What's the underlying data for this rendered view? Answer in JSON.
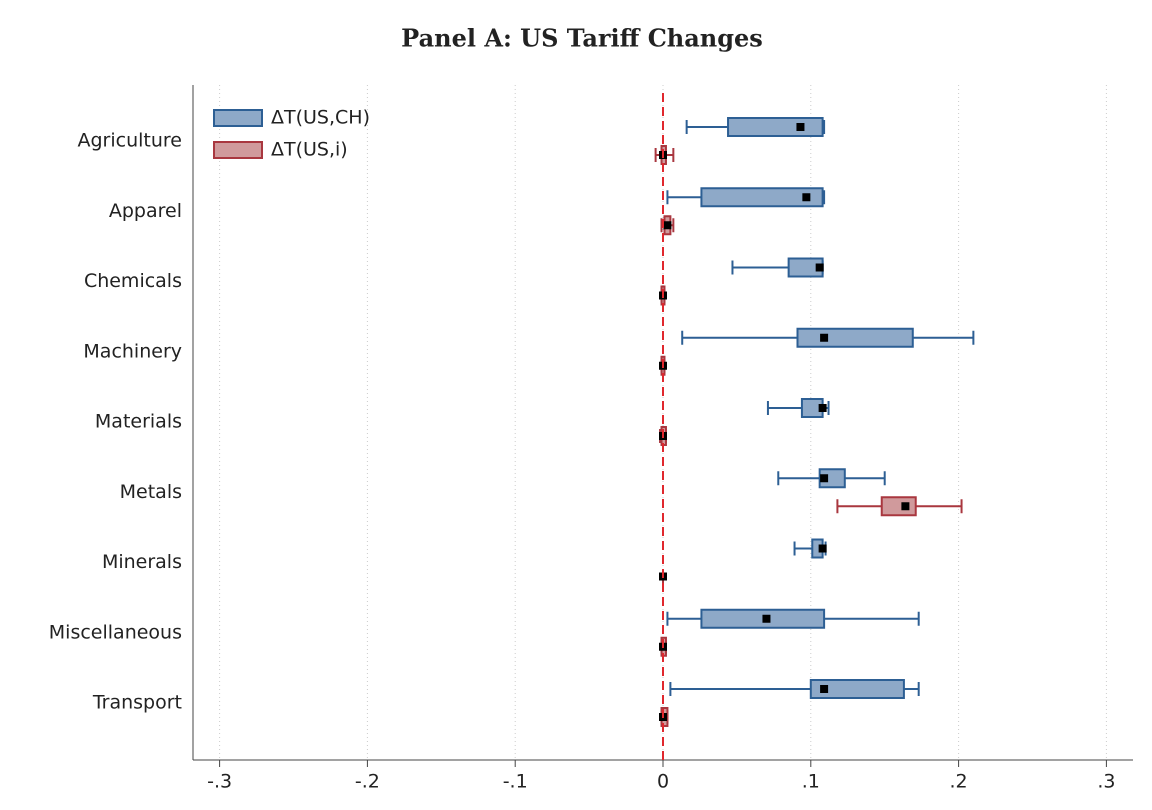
{
  "chart_data": {
    "type": "boxplot",
    "title": "Panel A: US Tariff Changes",
    "orientation": "horizontal",
    "categories": [
      "Agriculture",
      "Apparel",
      "Chemicals",
      "Machinery",
      "Materials",
      "Metals",
      "Minerals",
      "Miscellaneous",
      "Transport"
    ],
    "series": [
      {
        "name": "ΔT(US,CH)",
        "color": "#2d5f94",
        "fill": "#8ea9c8",
        "low": [
          0.016,
          0.003,
          0.047,
          0.013,
          0.071,
          0.078,
          0.089,
          0.003,
          0.005
        ],
        "q1": [
          0.044,
          0.026,
          0.085,
          0.091,
          0.094,
          0.106,
          0.101,
          0.026,
          0.1
        ],
        "q3": [
          0.108,
          0.108,
          0.108,
          0.169,
          0.108,
          0.123,
          0.108,
          0.109,
          0.163
        ],
        "high": [
          0.109,
          0.109,
          0.108,
          0.21,
          0.112,
          0.15,
          0.11,
          0.173,
          0.173
        ],
        "mean": [
          0.093,
          0.097,
          0.106,
          0.109,
          0.108,
          0.109,
          0.108,
          0.07,
          0.109
        ]
      },
      {
        "name": "ΔT(US,i)",
        "color": "#a9373f",
        "fill": "#d09a9c",
        "low": [
          -0.005,
          -0.001,
          -0.001,
          -0.001,
          -0.002,
          0.118,
          0,
          -0.001,
          -0.001
        ],
        "q1": [
          -0.001,
          0.001,
          -0.001,
          -0.001,
          -0.001,
          0.148,
          0,
          -0.001,
          -0.001
        ],
        "q3": [
          0.002,
          0.005,
          0.001,
          0.001,
          0.002,
          0.171,
          0,
          0.002,
          0.003
        ],
        "high": [
          0.007,
          0.007,
          0.001,
          0.001,
          0.002,
          0.202,
          0,
          0.002,
          0.003
        ],
        "mean": [
          0,
          0.003,
          0,
          0,
          0,
          0.164,
          0,
          0,
          0
        ]
      }
    ],
    "reference_line": 0,
    "reference_color": "#e0282e",
    "xlim": [
      -0.318,
      0.318
    ],
    "xticks": [
      {
        "value": -0.3,
        "label": "-.3"
      },
      {
        "value": -0.2,
        "label": "-.2"
      },
      {
        "value": -0.1,
        "label": "-.1"
      },
      0,
      {
        "value": 0.1,
        "label": ".1"
      },
      {
        "value": 0.2,
        "label": ".2"
      },
      {
        "value": 0.3,
        "label": ".3"
      }
    ],
    "grid": true,
    "legend": "top-left"
  }
}
